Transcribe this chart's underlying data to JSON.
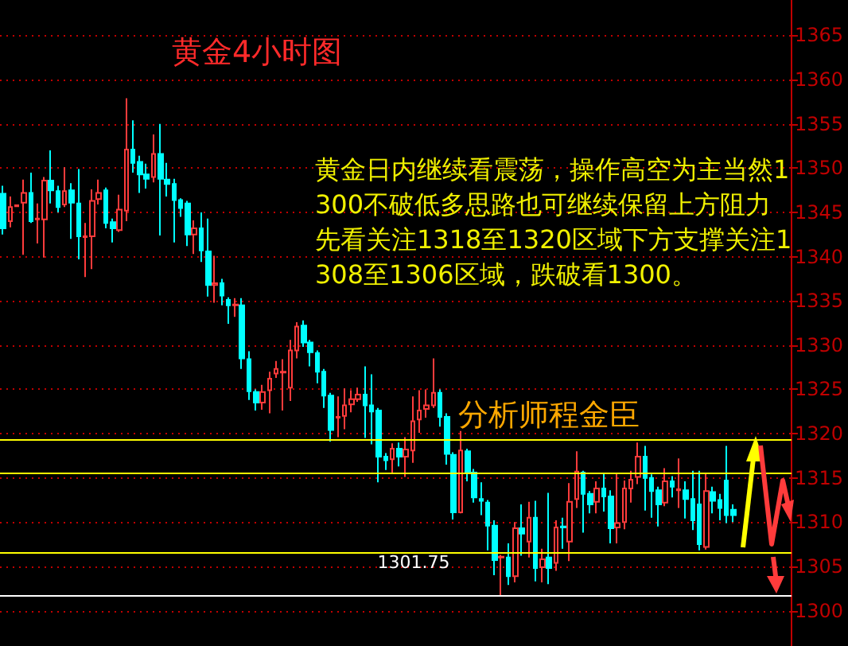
{
  "chart_data": {
    "type": "candlestick",
    "title": "黄金4小时图",
    "annotations": [
      "黄金日内继续看震荡，操作高空为主当然1300不破低多思路也可继续保留上方阻力先看关注1318至1320区域下方支撑关注1308至1306区域，跌破看1300。",
      "分析师程金臣",
      {
        "text": "1301.75",
        "y": 1301.75
      }
    ],
    "categories": [
      null,
      null,
      null,
      null,
      null,
      null,
      null,
      null,
      null,
      null,
      null,
      null,
      null,
      null,
      null,
      null,
      null,
      null,
      null,
      null,
      null,
      null,
      null,
      null,
      null,
      null,
      null,
      null,
      null,
      null,
      null,
      null,
      null,
      null,
      null,
      null,
      null,
      null,
      null,
      null,
      null,
      null,
      null,
      null,
      null,
      null,
      null,
      null,
      null,
      null,
      null,
      null,
      null,
      null,
      null,
      null,
      null,
      null,
      null,
      null,
      null,
      null,
      null,
      null,
      null,
      null,
      null,
      null,
      null,
      null,
      null,
      null,
      null,
      null,
      null,
      null,
      null,
      null,
      null,
      null,
      null,
      null,
      null,
      null,
      null,
      null,
      null,
      null,
      null,
      null,
      null,
      null,
      null,
      null,
      null,
      null,
      null,
      null,
      null,
      null,
      null,
      null,
      null,
      null,
      null,
      null,
      null,
      null,
      null,
      null,
      null,
      null,
      null,
      null,
      null,
      null
    ],
    "ohlc": [
      [
        1347.1,
        1348,
        1342.5,
        1343.2
      ],
      [
        1344,
        1346.8,
        1343.3,
        1345.6
      ],
      [
        1345.7,
        1345.9,
        1345.6,
        1345.8
      ],
      [
        1346.1,
        1348.7,
        1340.2,
        1347.2
      ],
      [
        1347.2,
        1349.5,
        1343.8,
        1344
      ],
      [
        1344.2,
        1346,
        1341.5,
        1344.3
      ],
      [
        1344.2,
        1349,
        1339.9,
        1348.6
      ],
      [
        1348.6,
        1352,
        1346,
        1347.5
      ],
      [
        1347.4,
        1348,
        1345,
        1345.6
      ],
      [
        1345.9,
        1350.1,
        1345.6,
        1347.4
      ],
      [
        1347.5,
        1348.3,
        1342,
        1346.1
      ],
      [
        1346,
        1349.9,
        1339.7,
        1342.3
      ],
      [
        1342.2,
        1343.8,
        1337.7,
        1342.3
      ],
      [
        1342.3,
        1347.6,
        1338.6,
        1346.3
      ],
      [
        1346.5,
        1348.7,
        1345.9,
        1347.2
      ],
      [
        1347.5,
        1347.8,
        1343.2,
        1343.8
      ],
      [
        1343.9,
        1344.3,
        1341.6,
        1343.2
      ],
      [
        1343,
        1347,
        1342.8,
        1345.3
      ],
      [
        1345.2,
        1357.9,
        1344,
        1352.1
      ],
      [
        1352.1,
        1355.4,
        1349.5,
        1350.6
      ],
      [
        1350.7,
        1351.4,
        1347.2,
        1349.3
      ],
      [
        1349.3,
        1350.5,
        1347.7,
        1348.8
      ],
      [
        1349,
        1353.8,
        1348.4,
        1351.6
      ],
      [
        1351.6,
        1355,
        1342.4,
        1348.8
      ],
      [
        1348.7,
        1350.6,
        1346.8,
        1348.2
      ],
      [
        1348.2,
        1348.8,
        1341.6,
        1346.4
      ],
      [
        1346.4,
        1346.6,
        1344.5,
        1345.5
      ],
      [
        1346,
        1346.3,
        1341.2,
        1342.5
      ],
      [
        1342.5,
        1344.1,
        1340.3,
        1343.2
      ],
      [
        1343.2,
        1345,
        1339.4,
        1340.7
      ],
      [
        1340.6,
        1344.3,
        1335.5,
        1336.8
      ],
      [
        1336.8,
        1340.1,
        1334.8,
        1337
      ],
      [
        1337,
        1337.5,
        1334.5,
        1335.6
      ],
      [
        1335.1,
        1335.4,
        1332.4,
        1334.5
      ],
      [
        1334.5,
        1335.3,
        1333.2,
        1334.6
      ],
      [
        1334.5,
        1335.3,
        1327.3,
        1328.5
      ],
      [
        1328.4,
        1329.3,
        1323.8,
        1324.8
      ],
      [
        1324.7,
        1325,
        1322.6,
        1323.5
      ],
      [
        1323.5,
        1325.5,
        1322.7,
        1324.7
      ],
      [
        1324.9,
        1327,
        1322.3,
        1326.2
      ],
      [
        1326.8,
        1328.2,
        1326.3,
        1327.3
      ],
      [
        1326.9,
        1328.4,
        1322.6,
        1327
      ],
      [
        1325.2,
        1330.6,
        1323.7,
        1329.4
      ],
      [
        1329.4,
        1332.6,
        1328.5,
        1332.1
      ],
      [
        1332.2,
        1332.8,
        1329.8,
        1330.3
      ],
      [
        1330.3,
        1330.6,
        1327.6,
        1329.2
      ],
      [
        1329.1,
        1329.4,
        1325.7,
        1327
      ],
      [
        1327,
        1327.3,
        1322.9,
        1324.3
      ],
      [
        1324.3,
        1324.6,
        1319.1,
        1320.4
      ],
      [
        1321.8,
        1324.2,
        1319.6,
        1321.9
      ],
      [
        1322,
        1325.1,
        1320.5,
        1323.2
      ],
      [
        1323.3,
        1324.9,
        1322.4,
        1323.9
      ],
      [
        1323.9,
        1325.2,
        1323.6,
        1324.4
      ],
      [
        1324.4,
        1327.6,
        1319.5,
        1323.2
      ],
      [
        1323.2,
        1326.7,
        1318.8,
        1322.5
      ],
      [
        1322.6,
        1322.9,
        1314.5,
        1317.4
      ],
      [
        1317.4,
        1317.8,
        1315.9,
        1317
      ],
      [
        1317.1,
        1318.9,
        1315.6,
        1318.3
      ],
      [
        1318.3,
        1319,
        1316.3,
        1317.4
      ],
      [
        1317.4,
        1319.6,
        1315.1,
        1318.2
      ],
      [
        1318.1,
        1324.2,
        1316.7,
        1321.4
      ],
      [
        1321.6,
        1324.9,
        1320.1,
        1322.6
      ],
      [
        1322.8,
        1325,
        1321.8,
        1323.2
      ],
      [
        1323.2,
        1328.5,
        1322.9,
        1324.6
      ],
      [
        1324.6,
        1325,
        1320.8,
        1321.9
      ],
      [
        1321.9,
        1322.3,
        1316.5,
        1317.7
      ],
      [
        1317.6,
        1317.9,
        1310.3,
        1311.1
      ],
      [
        1311.1,
        1320.3,
        1311,
        1318.1
      ],
      [
        1318,
        1318.3,
        1314.6,
        1315.6
      ],
      [
        1315.6,
        1316,
        1312.2,
        1312.8
      ],
      [
        1312.6,
        1314.5,
        1310.8,
        1312.4
      ],
      [
        1312.2,
        1312.5,
        1306.8,
        1309.6
      ],
      [
        1309.6,
        1310.2,
        1304,
        1305.7
      ],
      [
        1306,
        1306.3,
        1301.75,
        1306.1
      ],
      [
        1306,
        1307.6,
        1302.9,
        1303.9
      ],
      [
        1303.9,
        1310,
        1303.2,
        1309.3
      ],
      [
        1309.3,
        1312,
        1306.2,
        1308.7
      ],
      [
        1307.8,
        1312.3,
        1306,
        1310.5
      ],
      [
        1310.5,
        1312.4,
        1303.3,
        1304.8
      ],
      [
        1304.9,
        1307,
        1303.2,
        1305.8
      ],
      [
        1306,
        1313.3,
        1303,
        1304.8
      ],
      [
        1305.4,
        1310.2,
        1304.5,
        1309.4
      ],
      [
        1309.5,
        1310.5,
        1307,
        1309.4
      ],
      [
        1307.8,
        1314.4,
        1305.6,
        1312.3
      ],
      [
        1312.6,
        1318,
        1311.6,
        1315.7
      ],
      [
        1315.6,
        1315.8,
        1308.8,
        1313.2
      ],
      [
        1313.2,
        1313.5,
        1311,
        1312
      ],
      [
        1312.3,
        1314.6,
        1311,
        1313.8
      ],
      [
        1313.8,
        1315.5,
        1311.2,
        1312.9
      ],
      [
        1312.9,
        1313.6,
        1307.6,
        1309.3
      ],
      [
        1309.4,
        1315.5,
        1307.6,
        1309.9
      ],
      [
        1310,
        1314.7,
        1309.2,
        1313.8
      ],
      [
        1313.8,
        1315.8,
        1312.2,
        1314.8
      ],
      [
        1315.1,
        1319,
        1314.3,
        1317.4
      ],
      [
        1317.4,
        1318.6,
        1311.3,
        1315
      ],
      [
        1315,
        1315.4,
        1310.5,
        1313.5
      ],
      [
        1313.6,
        1314,
        1309.5,
        1312
      ],
      [
        1312.2,
        1316.1,
        1311.8,
        1314.6
      ],
      [
        1314.6,
        1315.2,
        1312.8,
        1314
      ],
      [
        1313.6,
        1317.2,
        1311.6,
        1313.7
      ],
      [
        1313.6,
        1314.6,
        1310.4,
        1312.6
      ],
      [
        1312.6,
        1315.8,
        1309.1,
        1310.2
      ],
      [
        1312,
        1315.8,
        1306.8,
        1307.5
      ],
      [
        1307.2,
        1315.6,
        1306.9,
        1313.5
      ],
      [
        1313.4,
        1314,
        1311,
        1312.4
      ],
      [
        1312.5,
        1313.2,
        1310.2,
        1311.6
      ],
      [
        1314.7,
        1318.6,
        1309.9,
        1310.8
      ],
      [
        1311.4,
        1312,
        1310,
        1310.8
      ],
      null,
      null,
      null,
      null,
      null,
      null,
      null,
      null
    ],
    "ylim": [
      1296,
      1369
    ],
    "yticks": [
      1300,
      1305,
      1310,
      1315,
      1320,
      1325,
      1330,
      1335,
      1340,
      1345,
      1350,
      1355,
      1360,
      1365
    ],
    "grid": "y",
    "tick_labels": "y",
    "ref_lines": [
      {
        "axis": "y",
        "value": 1319.3,
        "color": "#ffff00"
      },
      {
        "axis": "y",
        "value": 1315.6,
        "color": "#ffff00"
      },
      {
        "axis": "y",
        "value": 1306.6,
        "color": "#ffff00"
      },
      {
        "axis": "y",
        "value": 1301.75,
        "color": "#ffffff"
      }
    ]
  }
}
